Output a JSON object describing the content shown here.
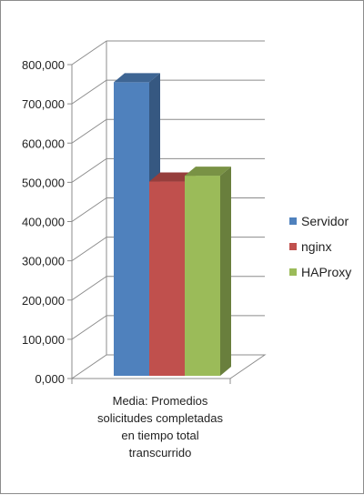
{
  "chart_data": {
    "type": "bar",
    "style": "3d-clustered-column",
    "categories": [
      "Media: Promedios solicitudes completadas en tiempo total transcurrido"
    ],
    "category_label_lines": [
      "Media: Promedios",
      "solicitudes completadas",
      "en tiempo total",
      "transcurrido"
    ],
    "series": [
      {
        "name": "Servidor",
        "values": [
          748000
        ],
        "color": "#4f81bd"
      },
      {
        "name": "nginx",
        "values": [
          495000
        ],
        "color": "#c0504d"
      },
      {
        "name": "HAProxy",
        "values": [
          510000
        ],
        "color": "#9bbb59"
      }
    ],
    "ylim": [
      0,
      800000
    ],
    "yticks": [
      0,
      100000,
      200000,
      300000,
      400000,
      500000,
      600000,
      700000,
      800000
    ],
    "ytick_labels": [
      "0,000",
      "100,000",
      "200,000",
      "300,000",
      "400,000",
      "500,000",
      "600,000",
      "700,000",
      "800,000"
    ],
    "grid": true,
    "legend_position": "right",
    "title": "",
    "xlabel": "",
    "ylabel": ""
  }
}
